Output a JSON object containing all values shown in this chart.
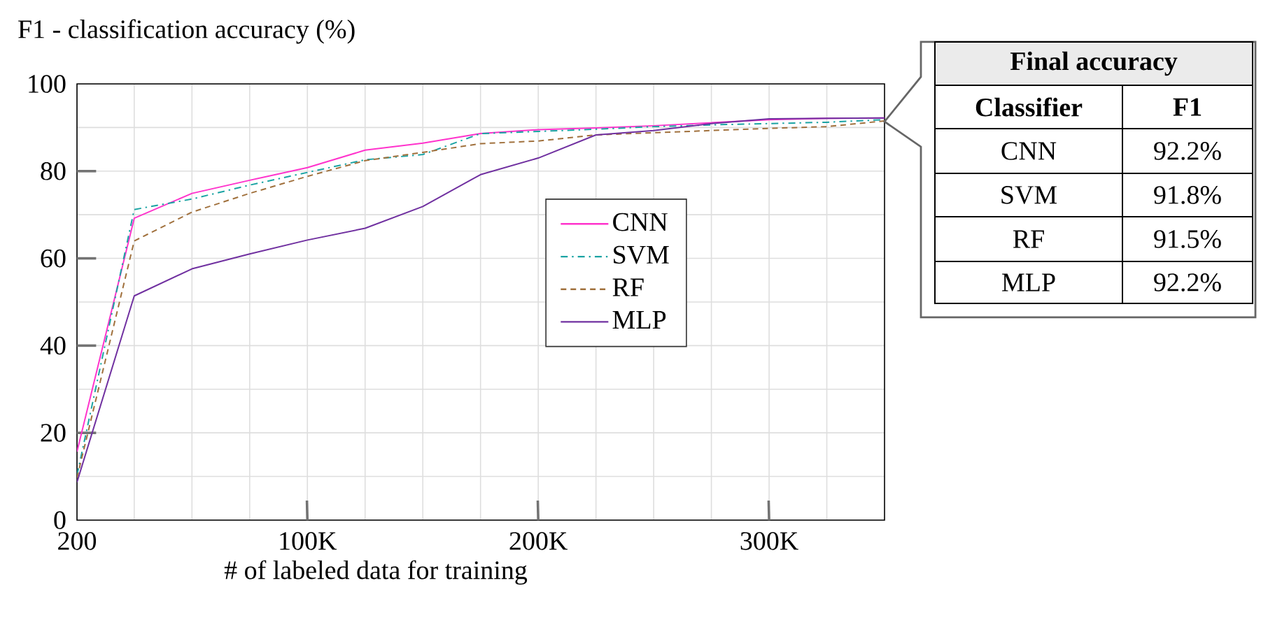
{
  "chart_data": {
    "type": "line",
    "ylabel": "F1 - classification accuracy (%)",
    "xlabel": "# of labeled data for training",
    "x": [
      200,
      25000,
      50000,
      75000,
      100000,
      125000,
      150000,
      175000,
      200000,
      225000,
      250000,
      275000,
      300000,
      325000,
      350000
    ],
    "series": [
      {
        "name": "CNN",
        "color": "#ff33cc",
        "line_style": "solid",
        "values": [
          15.7,
          69.2,
          74.9,
          77.9,
          80.8,
          84.8,
          86.4,
          88.6,
          89.5,
          89.9,
          90.4,
          91.1,
          91.8,
          92.1,
          92.2
        ]
      },
      {
        "name": "SVM",
        "color": "#1aa3a3",
        "line_style": "dashdot",
        "values": [
          10.3,
          71.2,
          73.6,
          76.8,
          79.7,
          82.6,
          83.8,
          88.6,
          89.1,
          89.6,
          90.2,
          90.6,
          90.9,
          91.2,
          91.8
        ]
      },
      {
        "name": "RF",
        "color": "#a0703c",
        "line_style": "dashed",
        "values": [
          9.7,
          64.0,
          70.6,
          74.9,
          78.8,
          82.4,
          84.3,
          86.3,
          86.9,
          88.3,
          88.8,
          89.3,
          89.8,
          90.2,
          91.5
        ]
      },
      {
        "name": "MLP",
        "color": "#7030a0",
        "line_style": "solid",
        "values": [
          8.7,
          51.4,
          57.6,
          61.0,
          64.2,
          66.9,
          71.9,
          79.2,
          83.0,
          88.3,
          89.3,
          90.9,
          92.0,
          92.1,
          92.2
        ]
      }
    ],
    "xlim": [
      200,
      350000
    ],
    "ylim": [
      0,
      100
    ],
    "xticks": [
      {
        "value": 200,
        "label": "200"
      },
      {
        "value": 25000,
        "label": null
      },
      {
        "value": 50000,
        "label": null
      },
      {
        "value": 75000,
        "label": null
      },
      {
        "value": 100000,
        "label": "100K"
      },
      {
        "value": 125000,
        "label": null
      },
      {
        "value": 150000,
        "label": null
      },
      {
        "value": 175000,
        "label": null
      },
      {
        "value": 200000,
        "label": "200K"
      },
      {
        "value": 225000,
        "label": null
      },
      {
        "value": 250000,
        "label": null
      },
      {
        "value": 275000,
        "label": null
      },
      {
        "value": 300000,
        "label": "300K"
      },
      {
        "value": 325000,
        "label": null
      }
    ],
    "yticks": [
      0,
      {
        "value": 10,
        "label": null
      },
      20,
      {
        "value": 30,
        "label": null
      },
      40,
      {
        "value": 50,
        "label": null
      },
      60,
      {
        "value": 70,
        "label": null
      },
      80,
      {
        "value": 90,
        "label": null
      },
      100
    ],
    "grid": true,
    "legend": "right",
    "annotations": [
      "Final accuracy",
      "Classifier",
      "F1",
      "92.2%",
      "91.8%",
      "91.5%",
      "92.2%"
    ]
  }
}
